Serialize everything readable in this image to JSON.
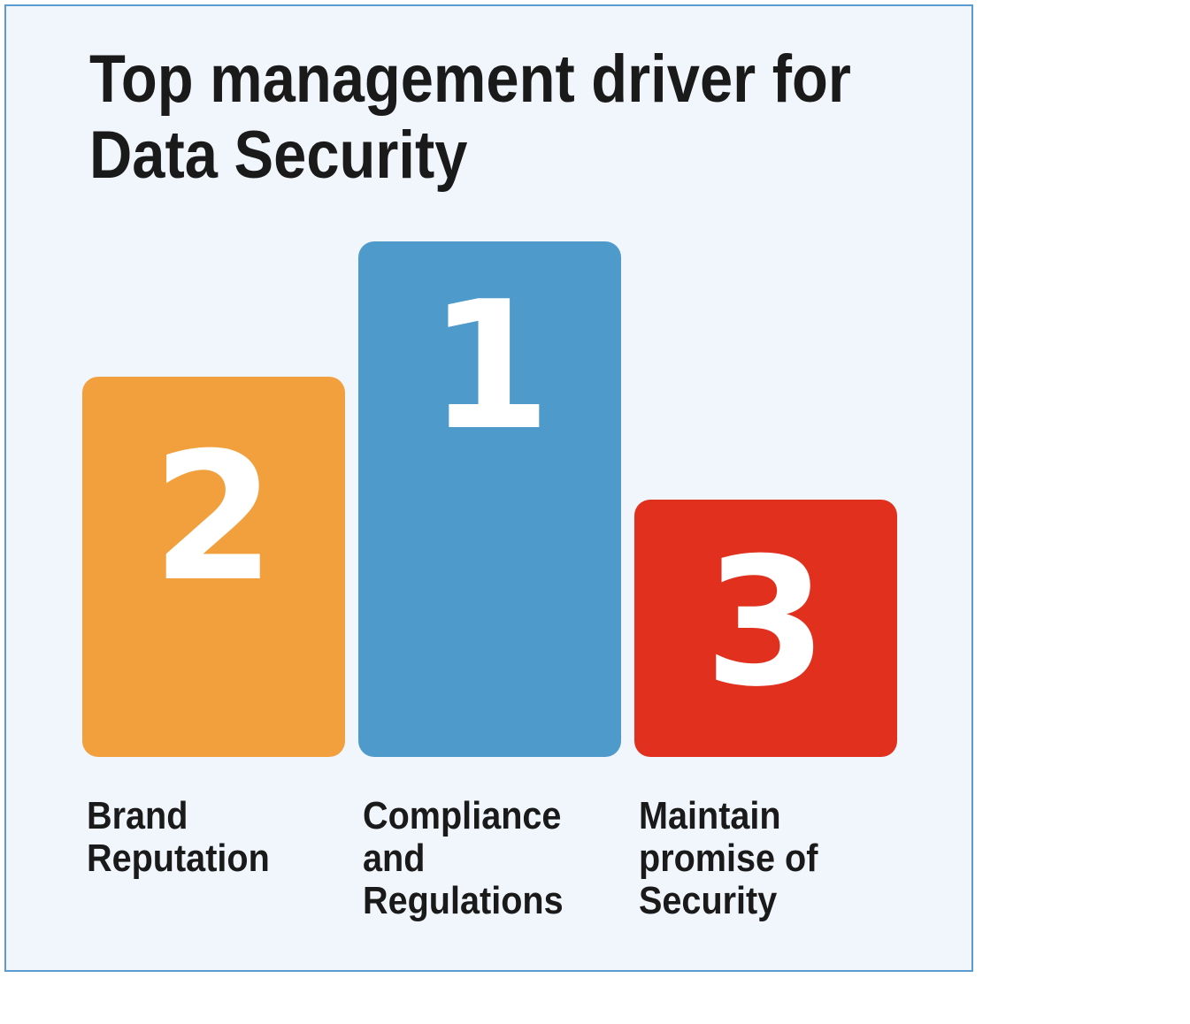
{
  "chart_data": {
    "type": "bar",
    "title_lines": [
      "Top management driver for",
      "Data Security"
    ],
    "categories": [
      [
        "Brand",
        "Reputation"
      ],
      [
        "Compliance",
        "and",
        "Regulations"
      ],
      [
        "Maintain",
        "promise of",
        "Security"
      ]
    ],
    "ranks": [
      "2",
      "1",
      "3"
    ],
    "values": [
      2,
      1,
      3
    ],
    "colors": [
      "#f2a03d",
      "#4e9acb",
      "#e1301e"
    ],
    "xlabel": "",
    "ylabel": ""
  }
}
